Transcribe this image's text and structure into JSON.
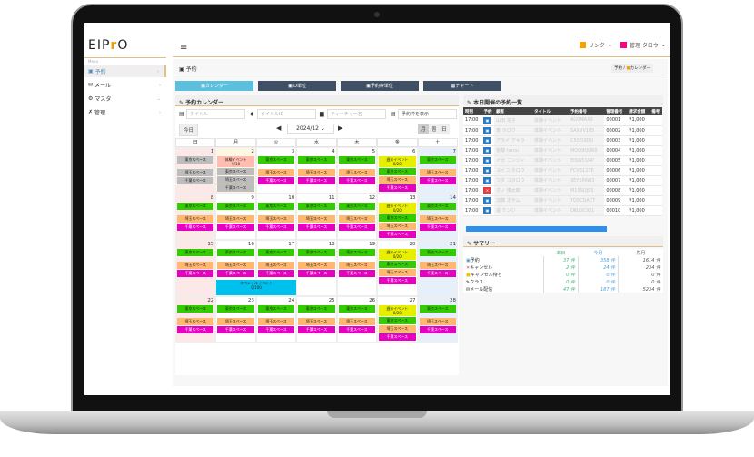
{
  "app": {
    "logo": "EIPrO",
    "menu_caption": "Menu"
  },
  "header": {
    "link_label": "リンク",
    "user_label": "管理 タロウ",
    "link_color": "#f7a000",
    "user_color": "#ff0088"
  },
  "sidebar": {
    "items": [
      {
        "label": "予約",
        "icon": "calendar-icon",
        "active": true
      },
      {
        "label": "メール",
        "icon": "mail-icon"
      },
      {
        "label": "マスタ",
        "icon": "gears-icon"
      },
      {
        "label": "管理",
        "icon": "tools-icon"
      }
    ]
  },
  "page": {
    "title": "予約",
    "breadcrumb": [
      "予約",
      "カレンダー"
    ]
  },
  "tabs": [
    {
      "label": "カレンダー",
      "active": true
    },
    {
      "label": "ID単位"
    },
    {
      "label": "予約枠単位"
    },
    {
      "label": "チャート"
    }
  ],
  "calendar": {
    "section_title": "予約カレンダー",
    "filters": [
      {
        "placeholder": "タイトル",
        "icon": "book-icon"
      },
      {
        "placeholder": "タイトルID",
        "icon": "tag-icon"
      },
      {
        "placeholder": "ティーチャー名",
        "icon": "briefcase-icon"
      },
      {
        "value": "予約枠を表示",
        "icon": "list-icon"
      }
    ],
    "today_label": "今日",
    "month": "2024/12",
    "views": [
      "月",
      "週",
      "日"
    ],
    "weekdays": [
      "日",
      "月",
      "火",
      "水",
      "木",
      "金",
      "土"
    ],
    "colors": {
      "grey": "#bdbdbd",
      "green": "#33cc00",
      "orange": "#ffb870",
      "magenta": "#e600c0",
      "yellow": "#e8ee00",
      "salmon": "#ffbcb0",
      "cyan": "#00c0ee"
    },
    "weeks": [
      [
        1,
        2,
        3,
        4,
        5,
        6,
        7
      ],
      [
        8,
        9,
        10,
        11,
        12,
        13,
        14
      ],
      [
        15,
        16,
        17,
        18,
        19,
        20,
        21
      ],
      [
        22,
        23,
        24,
        25,
        26,
        27,
        28
      ]
    ],
    "events": {
      "tokyo": "東京スペース",
      "saitama": "埼玉スペース",
      "chiba": "千葉スペース",
      "trial": "体験イベント",
      "trial_count": "9/10",
      "weekend": "週末イベント",
      "weekend_count": "0/20",
      "special": "スペシャルイベント",
      "special_count": "0/100"
    }
  },
  "reservations": {
    "section_title": "本日開催の予約一覧",
    "columns": [
      "時刻",
      "予約",
      "顧客",
      "タイトル",
      "予約番号",
      "管理番号",
      "請求金額",
      "備考"
    ],
    "rows": [
      [
        "17:00",
        "booked",
        "山田 花子",
        "体験イベント",
        "AG0MAXX",
        "00001",
        "¥1,000",
        ""
      ],
      [
        "17:00",
        "booked",
        "東 タロウ",
        "体験イベント",
        "SAXVV105",
        "00002",
        "¥1,000",
        ""
      ],
      [
        "17:00",
        "booked",
        "アライ アキラ",
        "体験イベント",
        "C50EI9DU",
        "00003",
        "¥1,000",
        ""
      ],
      [
        "17:00",
        "booked",
        "後藤 tarou",
        "体験イベント",
        "MOQ9OUR0",
        "00004",
        "¥1,000",
        ""
      ],
      [
        "17:00",
        "booked",
        "イガ ニンジャ",
        "体験イベント",
        "EISWCU4P",
        "00005",
        "¥1,000",
        ""
      ],
      [
        "17:00",
        "booked",
        "ヨイコ タロウ",
        "体験イベント",
        "FCV3123E",
        "00006",
        "¥1,000",
        ""
      ],
      [
        "17:00",
        "booked",
        "ワタ コタロウ",
        "体験イベント",
        "3EY5PAW3",
        "00007",
        "¥1,000",
        ""
      ],
      [
        "17:00",
        "cancelled",
        "オノ 慎太郎",
        "体験イベント",
        "M10SDJ9S",
        "00008",
        "¥1,000",
        ""
      ],
      [
        "17:00",
        "booked",
        "加藤 オサム",
        "体験イベント",
        "TQ5CDACT",
        "00009",
        "¥1,000",
        ""
      ],
      [
        "17:00",
        "booked",
        "堀 ケンジ",
        "体験イベント",
        "OKU2CIQ1",
        "00010",
        "¥1,000",
        ""
      ]
    ]
  },
  "summary": {
    "section_title": "サマリー",
    "columns": [
      "本日",
      "今月",
      "先月"
    ],
    "rows": [
      {
        "label": "予約",
        "icon": "calendar-icon",
        "values": [
          "37 件",
          "358 件",
          "1614 件"
        ]
      },
      {
        "label": "キャンセル",
        "icon": "x-icon",
        "values": [
          "2 件",
          "24 件",
          "234 件"
        ]
      },
      {
        "label": "キャンセル待ち",
        "icon": "square-icon",
        "values": [
          "0 件",
          "0 件",
          "0 件"
        ]
      },
      {
        "label": "クラス",
        "icon": "pen-icon",
        "values": [
          "0 件",
          "0 件",
          "0 件"
        ]
      },
      {
        "label": "メール配信",
        "icon": "mail-icon",
        "values": [
          "47 件",
          "187 件",
          "5234 件"
        ]
      }
    ]
  }
}
